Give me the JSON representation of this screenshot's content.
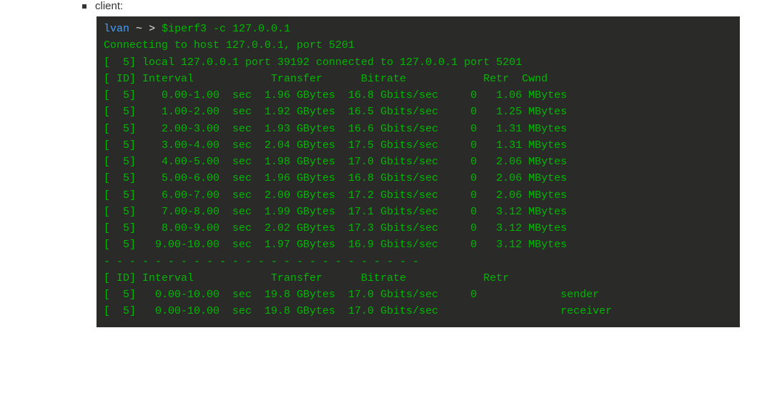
{
  "label": {
    "title": "client"
  },
  "colors": {
    "terminal_bg": "#2a2a28",
    "terminal_fg": "#00b800",
    "prompt_user": "#3f9fff",
    "prompt_symbols": "#e8e8e8"
  },
  "prompt": {
    "user": "lvan",
    "cwd": "~",
    "gt": ">",
    "command": "$iperf3 -c 127.0.0.1"
  },
  "connect_line": "Connecting to host 127.0.0.1, port 5201",
  "local_line": "[  5] local 127.0.0.1 port 39192 connected to 127.0.0.1 port 5201",
  "header_cols": {
    "id": "ID",
    "interval": "Interval",
    "transfer": "Transfer",
    "bitrate": "Bitrate",
    "retr": "Retr",
    "cwnd": "Cwnd"
  },
  "intervals": [
    {
      "id": 5,
      "interval": "0.00-1.00",
      "unit": "sec",
      "transfer": "1.96 GBytes",
      "bitrate": "16.8 Gbits/sec",
      "retr": "0",
      "cwnd": "1.06 MBytes"
    },
    {
      "id": 5,
      "interval": "1.00-2.00",
      "unit": "sec",
      "transfer": "1.92 GBytes",
      "bitrate": "16.5 Gbits/sec",
      "retr": "0",
      "cwnd": "1.25 MBytes"
    },
    {
      "id": 5,
      "interval": "2.00-3.00",
      "unit": "sec",
      "transfer": "1.93 GBytes",
      "bitrate": "16.6 Gbits/sec",
      "retr": "0",
      "cwnd": "1.31 MBytes"
    },
    {
      "id": 5,
      "interval": "3.00-4.00",
      "unit": "sec",
      "transfer": "2.04 GBytes",
      "bitrate": "17.5 Gbits/sec",
      "retr": "0",
      "cwnd": "1.31 MBytes"
    },
    {
      "id": 5,
      "interval": "4.00-5.00",
      "unit": "sec",
      "transfer": "1.98 GBytes",
      "bitrate": "17.0 Gbits/sec",
      "retr": "0",
      "cwnd": "2.06 MBytes"
    },
    {
      "id": 5,
      "interval": "5.00-6.00",
      "unit": "sec",
      "transfer": "1.96 GBytes",
      "bitrate": "16.8 Gbits/sec",
      "retr": "0",
      "cwnd": "2.06 MBytes"
    },
    {
      "id": 5,
      "interval": "6.00-7.00",
      "unit": "sec",
      "transfer": "2.00 GBytes",
      "bitrate": "17.2 Gbits/sec",
      "retr": "0",
      "cwnd": "2.06 MBytes"
    },
    {
      "id": 5,
      "interval": "7.00-8.00",
      "unit": "sec",
      "transfer": "1.99 GBytes",
      "bitrate": "17.1 Gbits/sec",
      "retr": "0",
      "cwnd": "3.12 MBytes"
    },
    {
      "id": 5,
      "interval": "8.00-9.00",
      "unit": "sec",
      "transfer": "2.02 GBytes",
      "bitrate": "17.3 Gbits/sec",
      "retr": "0",
      "cwnd": "3.12 MBytes"
    },
    {
      "id": 5,
      "interval": "9.00-10.00",
      "unit": "sec",
      "transfer": "1.97 GBytes",
      "bitrate": "16.9 Gbits/sec",
      "retr": "0",
      "cwnd": "3.12 MBytes"
    }
  ],
  "separator": "- - - - - - - - - - - - - - - - - - - - - - - - -",
  "summary": [
    {
      "id": 5,
      "interval": "0.00-10.00",
      "unit": "sec",
      "transfer": "19.8 GBytes",
      "bitrate": "17.0 Gbits/sec",
      "retr": "0",
      "role": "sender"
    },
    {
      "id": 5,
      "interval": "0.00-10.00",
      "unit": "sec",
      "transfer": "19.8 GBytes",
      "bitrate": "17.0 Gbits/sec",
      "retr": "",
      "role": "receiver"
    }
  ]
}
